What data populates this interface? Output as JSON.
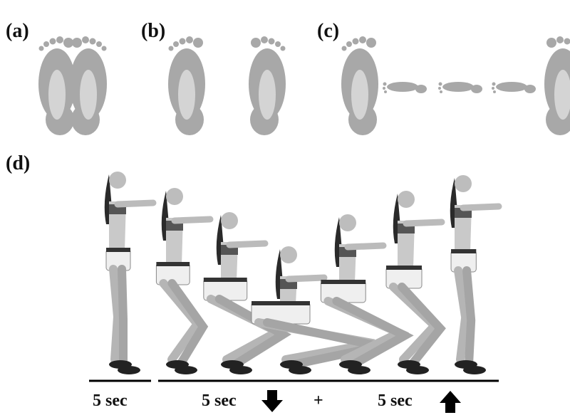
{
  "panels": {
    "a": "(a)",
    "b": "(b)",
    "c": "(c)",
    "d": "(d)"
  },
  "timing": {
    "hold": "5 sec",
    "down": "5 sec",
    "plus": "+",
    "up": "5 sec"
  }
}
